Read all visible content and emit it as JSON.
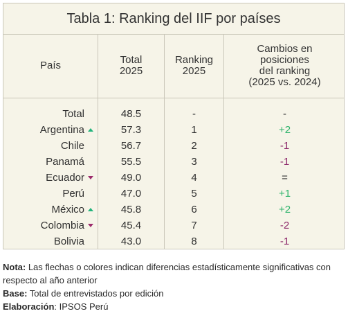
{
  "title": "Tabla 1: Ranking del IIF por países",
  "headers": {
    "country": "País",
    "total_line1": "Total",
    "total_line2": "2025",
    "ranking_line1": "Ranking",
    "ranking_line2": "2025",
    "change_line1": "Cambios en",
    "change_line2": "posiciones",
    "change_line3": "del ranking",
    "change_line4": "(2025 vs. 2024)"
  },
  "rows": [
    {
      "country": "Total",
      "total": "48.5",
      "ranking": "-",
      "change": "-",
      "arrow": "none",
      "change_type": "neu"
    },
    {
      "country": "Argentina",
      "total": "57.3",
      "ranking": "1",
      "change": "+2",
      "arrow": "up",
      "change_type": "pos"
    },
    {
      "country": "Chile",
      "total": "56.7",
      "ranking": "2",
      "change": "-1",
      "arrow": "none",
      "change_type": "neg"
    },
    {
      "country": "Panamá",
      "total": "55.5",
      "ranking": "3",
      "change": "-1",
      "arrow": "none",
      "change_type": "neg"
    },
    {
      "country": "Ecuador",
      "total": "49.0",
      "ranking": "4",
      "change": "=",
      "arrow": "down",
      "change_type": "neu"
    },
    {
      "country": "Perú",
      "total": "47.0",
      "ranking": "5",
      "change": "+1",
      "arrow": "none",
      "change_type": "pos"
    },
    {
      "country": "México",
      "total": "45.8",
      "ranking": "6",
      "change": "+2",
      "arrow": "up",
      "change_type": "pos"
    },
    {
      "country": "Colombia",
      "total": "45.4",
      "ranking": "7",
      "change": "-2",
      "arrow": "down",
      "change_type": "neg"
    },
    {
      "country": "Bolivia",
      "total": "43.0",
      "ranking": "8",
      "change": "-1",
      "arrow": "none",
      "change_type": "neg"
    }
  ],
  "notes": {
    "nota_label": "Nota:",
    "nota_text": " Las flechas o colores indican diferencias estadísticamente significativas con respecto al año anterior",
    "base_label": "Base:",
    "base_text": " Total de entrevistados por edición",
    "elab_label": "Elaboración",
    "elab_text": ": IPSOS Perú"
  },
  "colors": {
    "up_arrow": "#22b37c",
    "down_arrow": "#9c2a6b",
    "positive": "#2eb36b",
    "negative": "#8e2a6b",
    "panel_bg": "#f6f4e8"
  }
}
